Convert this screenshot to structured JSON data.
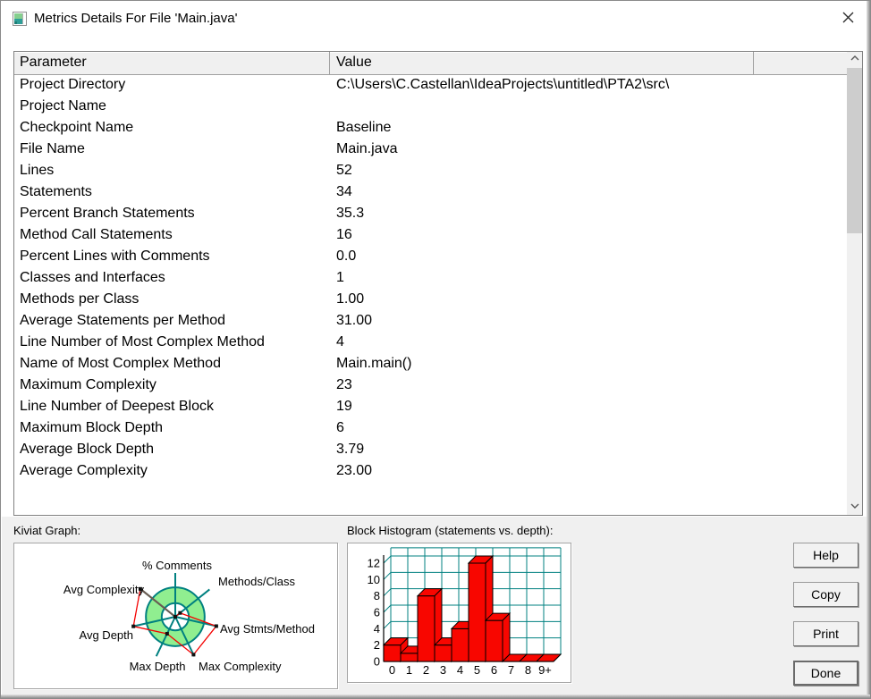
{
  "titlebar": {
    "title": "Metrics Details For File 'Main.java'"
  },
  "table": {
    "headers": {
      "parameter": "Parameter",
      "value": "Value"
    },
    "rows": [
      {
        "param": "Project Directory",
        "value": "C:\\Users\\C.Castellan\\IdeaProjects\\untitled\\PTA2\\src\\"
      },
      {
        "param": "Project Name",
        "value": ""
      },
      {
        "param": "Checkpoint Name",
        "value": "Baseline"
      },
      {
        "param": "File Name",
        "value": "Main.java"
      },
      {
        "param": "Lines",
        "value": "52"
      },
      {
        "param": "Statements",
        "value": "34"
      },
      {
        "param": "Percent Branch Statements",
        "value": "35.3"
      },
      {
        "param": "Method Call Statements",
        "value": "16"
      },
      {
        "param": "Percent Lines with Comments",
        "value": "0.0"
      },
      {
        "param": "Classes and Interfaces",
        "value": "1"
      },
      {
        "param": "Methods per Class",
        "value": "1.00"
      },
      {
        "param": "Average Statements per Method",
        "value": "31.00"
      },
      {
        "param": "Line Number of Most Complex Method",
        "value": "4"
      },
      {
        "param": "Name of Most Complex Method",
        "value": "Main.main()"
      },
      {
        "param": "Maximum Complexity",
        "value": "23"
      },
      {
        "param": "Line Number of Deepest Block",
        "value": "19"
      },
      {
        "param": "Maximum Block Depth",
        "value": "6"
      },
      {
        "param": "Average Block Depth",
        "value": "3.79"
      },
      {
        "param": "Average Complexity",
        "value": "23.00"
      }
    ]
  },
  "panels": {
    "kiviat_label": "Kiviat Graph:",
    "histogram_label": "Block Histogram (statements vs. depth):"
  },
  "buttons": {
    "help": "Help",
    "copy": "Copy",
    "print": "Print",
    "done": "Done"
  },
  "chart_data": [
    {
      "type": "radar",
      "title": "Kiviat Graph",
      "axes": [
        "% Comments",
        "Methods/Class",
        "Avg Stmts/Method",
        "Max Complexity",
        "Max Depth",
        "Avg Depth",
        "Avg Complexity"
      ],
      "values_fraction_of_axis": [
        0,
        0.14,
        0.96,
        0.96,
        0.43,
        0.98,
        1.02
      ],
      "ring_inner_fraction": 0.31,
      "ring_outer_fraction": 0.67,
      "legend": "none",
      "colors": {
        "ring_fill": "#90EE90",
        "axis": "#008080",
        "series": "#f40000",
        "overlap_edge": "#6e5a50",
        "marker": "#111111"
      }
    },
    {
      "type": "bar",
      "title": "Block Histogram (statements vs. depth)",
      "categories": [
        "0",
        "1",
        "2",
        "3",
        "4",
        "5",
        "6",
        "7",
        "8",
        "9+"
      ],
      "values": [
        2,
        1,
        8,
        2,
        4,
        12,
        5,
        0,
        0,
        0
      ],
      "xlabel": "depth",
      "ylabel": "statements",
      "yticks": [
        0,
        2,
        4,
        6,
        8,
        10,
        12
      ],
      "ylim": [
        0,
        13
      ],
      "grid": true,
      "style": "3d",
      "colors": {
        "bar": "#f80600",
        "grid": "#008080",
        "axis": "#000000"
      }
    }
  ]
}
